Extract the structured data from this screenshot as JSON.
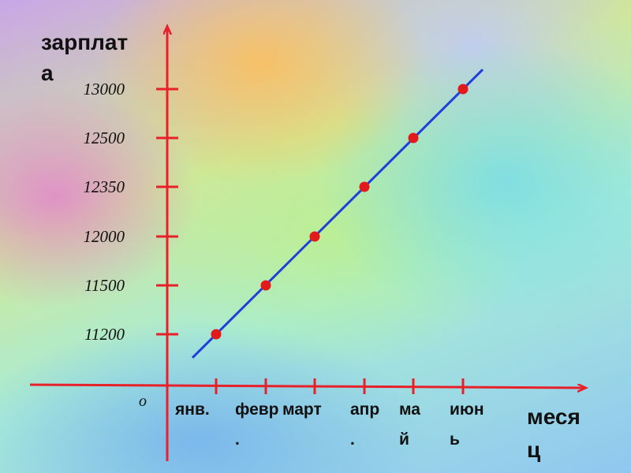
{
  "chart_data": {
    "type": "line",
    "xlabel": "месяц",
    "ylabel": "зарплата",
    "origin_label": "о",
    "categories": [
      "янв.",
      "февр.",
      "март",
      "апр.",
      "май",
      "июнь"
    ],
    "y_ticks": [
      11200,
      11500,
      12000,
      12350,
      12500,
      13000
    ],
    "series": [
      {
        "name": "зарплата",
        "values": [
          11200,
          11500,
          12000,
          12350,
          12500,
          13000
        ]
      }
    ],
    "colors": {
      "axis": "#e8202a",
      "line": "#1f3fd8",
      "point": "#e31a1c"
    }
  }
}
